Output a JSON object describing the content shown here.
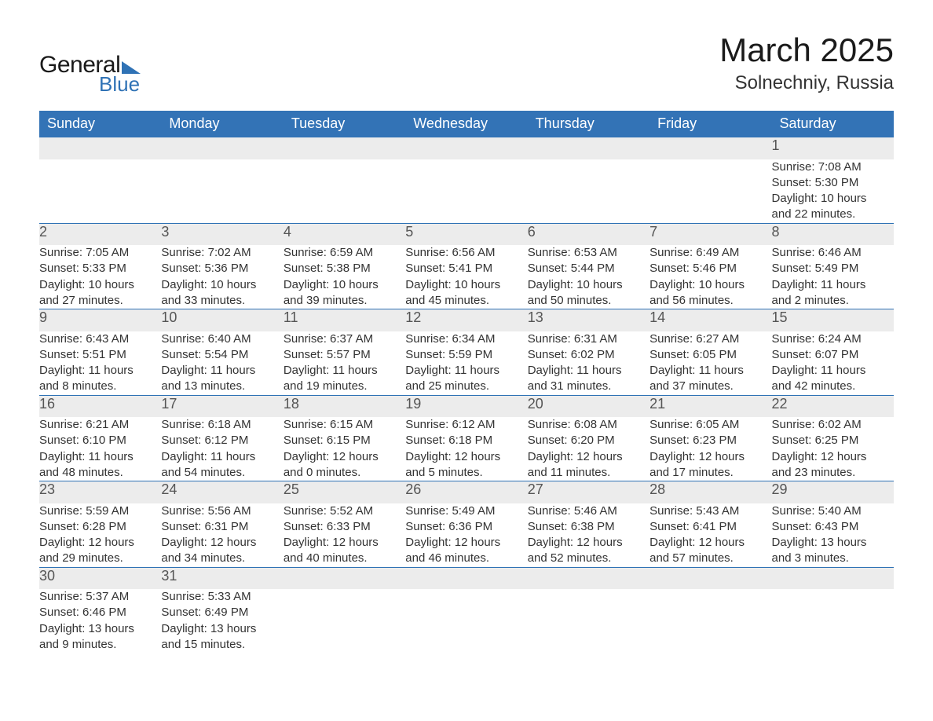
{
  "logo": {
    "general": "General",
    "blue": "Blue"
  },
  "title": "March 2025",
  "location": "Solnechniy, Russia",
  "colors": {
    "header_bg": "#3373b6",
    "header_text": "#ffffff",
    "daynum_bg": "#ececec",
    "daynum_border": "#2f72b5",
    "text": "#333333",
    "logo_blue": "#2f72b5"
  },
  "day_labels": [
    "Sunday",
    "Monday",
    "Tuesday",
    "Wednesday",
    "Thursday",
    "Friday",
    "Saturday"
  ],
  "weeks": [
    [
      null,
      null,
      null,
      null,
      null,
      null,
      {
        "n": "1",
        "sr": "Sunrise: 7:08 AM",
        "ss": "Sunset: 5:30 PM",
        "d1": "Daylight: 10 hours",
        "d2": "and 22 minutes."
      }
    ],
    [
      {
        "n": "2",
        "sr": "Sunrise: 7:05 AM",
        "ss": "Sunset: 5:33 PM",
        "d1": "Daylight: 10 hours",
        "d2": "and 27 minutes."
      },
      {
        "n": "3",
        "sr": "Sunrise: 7:02 AM",
        "ss": "Sunset: 5:36 PM",
        "d1": "Daylight: 10 hours",
        "d2": "and 33 minutes."
      },
      {
        "n": "4",
        "sr": "Sunrise: 6:59 AM",
        "ss": "Sunset: 5:38 PM",
        "d1": "Daylight: 10 hours",
        "d2": "and 39 minutes."
      },
      {
        "n": "5",
        "sr": "Sunrise: 6:56 AM",
        "ss": "Sunset: 5:41 PM",
        "d1": "Daylight: 10 hours",
        "d2": "and 45 minutes."
      },
      {
        "n": "6",
        "sr": "Sunrise: 6:53 AM",
        "ss": "Sunset: 5:44 PM",
        "d1": "Daylight: 10 hours",
        "d2": "and 50 minutes."
      },
      {
        "n": "7",
        "sr": "Sunrise: 6:49 AM",
        "ss": "Sunset: 5:46 PM",
        "d1": "Daylight: 10 hours",
        "d2": "and 56 minutes."
      },
      {
        "n": "8",
        "sr": "Sunrise: 6:46 AM",
        "ss": "Sunset: 5:49 PM",
        "d1": "Daylight: 11 hours",
        "d2": "and 2 minutes."
      }
    ],
    [
      {
        "n": "9",
        "sr": "Sunrise: 6:43 AM",
        "ss": "Sunset: 5:51 PM",
        "d1": "Daylight: 11 hours",
        "d2": "and 8 minutes."
      },
      {
        "n": "10",
        "sr": "Sunrise: 6:40 AM",
        "ss": "Sunset: 5:54 PM",
        "d1": "Daylight: 11 hours",
        "d2": "and 13 minutes."
      },
      {
        "n": "11",
        "sr": "Sunrise: 6:37 AM",
        "ss": "Sunset: 5:57 PM",
        "d1": "Daylight: 11 hours",
        "d2": "and 19 minutes."
      },
      {
        "n": "12",
        "sr": "Sunrise: 6:34 AM",
        "ss": "Sunset: 5:59 PM",
        "d1": "Daylight: 11 hours",
        "d2": "and 25 minutes."
      },
      {
        "n": "13",
        "sr": "Sunrise: 6:31 AM",
        "ss": "Sunset: 6:02 PM",
        "d1": "Daylight: 11 hours",
        "d2": "and 31 minutes."
      },
      {
        "n": "14",
        "sr": "Sunrise: 6:27 AM",
        "ss": "Sunset: 6:05 PM",
        "d1": "Daylight: 11 hours",
        "d2": "and 37 minutes."
      },
      {
        "n": "15",
        "sr": "Sunrise: 6:24 AM",
        "ss": "Sunset: 6:07 PM",
        "d1": "Daylight: 11 hours",
        "d2": "and 42 minutes."
      }
    ],
    [
      {
        "n": "16",
        "sr": "Sunrise: 6:21 AM",
        "ss": "Sunset: 6:10 PM",
        "d1": "Daylight: 11 hours",
        "d2": "and 48 minutes."
      },
      {
        "n": "17",
        "sr": "Sunrise: 6:18 AM",
        "ss": "Sunset: 6:12 PM",
        "d1": "Daylight: 11 hours",
        "d2": "and 54 minutes."
      },
      {
        "n": "18",
        "sr": "Sunrise: 6:15 AM",
        "ss": "Sunset: 6:15 PM",
        "d1": "Daylight: 12 hours",
        "d2": "and 0 minutes."
      },
      {
        "n": "19",
        "sr": "Sunrise: 6:12 AM",
        "ss": "Sunset: 6:18 PM",
        "d1": "Daylight: 12 hours",
        "d2": "and 5 minutes."
      },
      {
        "n": "20",
        "sr": "Sunrise: 6:08 AM",
        "ss": "Sunset: 6:20 PM",
        "d1": "Daylight: 12 hours",
        "d2": "and 11 minutes."
      },
      {
        "n": "21",
        "sr": "Sunrise: 6:05 AM",
        "ss": "Sunset: 6:23 PM",
        "d1": "Daylight: 12 hours",
        "d2": "and 17 minutes."
      },
      {
        "n": "22",
        "sr": "Sunrise: 6:02 AM",
        "ss": "Sunset: 6:25 PM",
        "d1": "Daylight: 12 hours",
        "d2": "and 23 minutes."
      }
    ],
    [
      {
        "n": "23",
        "sr": "Sunrise: 5:59 AM",
        "ss": "Sunset: 6:28 PM",
        "d1": "Daylight: 12 hours",
        "d2": "and 29 minutes."
      },
      {
        "n": "24",
        "sr": "Sunrise: 5:56 AM",
        "ss": "Sunset: 6:31 PM",
        "d1": "Daylight: 12 hours",
        "d2": "and 34 minutes."
      },
      {
        "n": "25",
        "sr": "Sunrise: 5:52 AM",
        "ss": "Sunset: 6:33 PM",
        "d1": "Daylight: 12 hours",
        "d2": "and 40 minutes."
      },
      {
        "n": "26",
        "sr": "Sunrise: 5:49 AM",
        "ss": "Sunset: 6:36 PM",
        "d1": "Daylight: 12 hours",
        "d2": "and 46 minutes."
      },
      {
        "n": "27",
        "sr": "Sunrise: 5:46 AM",
        "ss": "Sunset: 6:38 PM",
        "d1": "Daylight: 12 hours",
        "d2": "and 52 minutes."
      },
      {
        "n": "28",
        "sr": "Sunrise: 5:43 AM",
        "ss": "Sunset: 6:41 PM",
        "d1": "Daylight: 12 hours",
        "d2": "and 57 minutes."
      },
      {
        "n": "29",
        "sr": "Sunrise: 5:40 AM",
        "ss": "Sunset: 6:43 PM",
        "d1": "Daylight: 13 hours",
        "d2": "and 3 minutes."
      }
    ],
    [
      {
        "n": "30",
        "sr": "Sunrise: 5:37 AM",
        "ss": "Sunset: 6:46 PM",
        "d1": "Daylight: 13 hours",
        "d2": "and 9 minutes."
      },
      {
        "n": "31",
        "sr": "Sunrise: 5:33 AM",
        "ss": "Sunset: 6:49 PM",
        "d1": "Daylight: 13 hours",
        "d2": "and 15 minutes."
      },
      null,
      null,
      null,
      null,
      null
    ]
  ]
}
